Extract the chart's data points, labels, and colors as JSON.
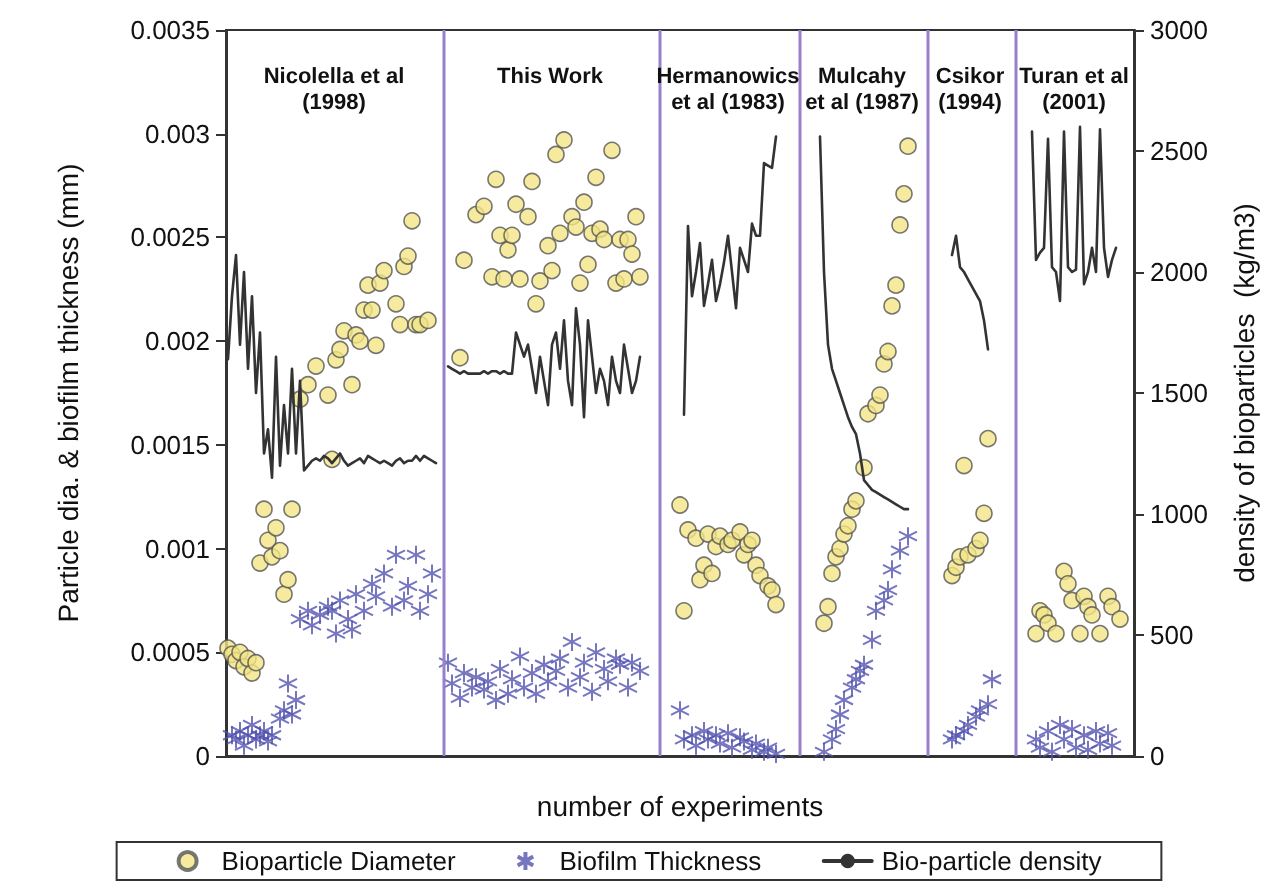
{
  "chart_data": {
    "type": "scatter",
    "xlabel": "number of experiments",
    "ylabel": "Particle dia. & biofilm thickness (mm)",
    "y2label": "density of bioparticles  (kg/m3)",
    "legend": "bottom",
    "grid": false,
    "tick_labels": "y",
    "categories": [
      null,
      null,
      null,
      null,
      null,
      null,
      null,
      null,
      null,
      null,
      null,
      null,
      null,
      null,
      null,
      null,
      null,
      null,
      null,
      null,
      null,
      null,
      null,
      null,
      null,
      null,
      null,
      null,
      null,
      null,
      null,
      null,
      null,
      null,
      null,
      null,
      null,
      null,
      null,
      null,
      null,
      null,
      null,
      null,
      null,
      null,
      null,
      null,
      null,
      null,
      null,
      null,
      null,
      null,
      null,
      null,
      null,
      null,
      null,
      null,
      null,
      null,
      null,
      null,
      null,
      null,
      null,
      null,
      null,
      null,
      null,
      null,
      null,
      null,
      null,
      null,
      null,
      null,
      null,
      null,
      null,
      null,
      null,
      null,
      null,
      null,
      null,
      null,
      null,
      null,
      null,
      null,
      null,
      null,
      null,
      null,
      null,
      null,
      null,
      null,
      null,
      null,
      null,
      null,
      null,
      null,
      null,
      null,
      null,
      null,
      null,
      null,
      null,
      null,
      null,
      null,
      null,
      null,
      null,
      null,
      null,
      null,
      null,
      null,
      null,
      null,
      null,
      null,
      null,
      null,
      null,
      null,
      null,
      null,
      null,
      null,
      null,
      null,
      null,
      null,
      null,
      null,
      null,
      null,
      null,
      null,
      null,
      null,
      null,
      null,
      null,
      null,
      null,
      null,
      null,
      null,
      null,
      null,
      null,
      null,
      null,
      null,
      null,
      null,
      null,
      null,
      null,
      null,
      null,
      null,
      null,
      null,
      null,
      null,
      null,
      null,
      null,
      null,
      null,
      null,
      null,
      null,
      null,
      null,
      null,
      null,
      null,
      null,
      null,
      null,
      null,
      null,
      null,
      null,
      null,
      null,
      null,
      null,
      null,
      null,
      null,
      null,
      null,
      null,
      null,
      null,
      null,
      null,
      null,
      null,
      null,
      null,
      null,
      null,
      null,
      null,
      null,
      null,
      null,
      null,
      null,
      null,
      null,
      null,
      null,
      null,
      null
    ],
    "ylim": [
      0,
      0.0035
    ],
    "yticks": [
      0,
      0.0005,
      0.001,
      0.0015,
      0.002,
      0.0025,
      0.003,
      0.0035
    ],
    "y2lim": [
      0,
      3000
    ],
    "y2ticks": [
      0,
      500,
      1000,
      1500,
      2000,
      2500,
      3000
    ],
    "annotations": [
      "Nicolella et al\n(1998)",
      "This Work",
      "Hermanowics\net al (1983)",
      "Mulcahy\net al (1987)",
      "Csikor\n(1994)",
      "Turan et al\n(2001)"
    ],
    "series": [
      {
        "name": "Bioparticle Diameter",
        "marker": "circle",
        "color": "#f3e585",
        "values": [
          0.00052,
          0.00049,
          0.00046,
          0.0005,
          0.00043,
          0.00047,
          0.0004,
          0.00045,
          0.00093,
          0.00119,
          0.00104,
          0.00096,
          0.0011,
          0.00099,
          0.00078,
          0.00085,
          0.00119,
          null,
          0.00172,
          null,
          0.00179,
          null,
          0.00188,
          null,
          null,
          0.00174,
          0.00143,
          0.00191,
          0.00196,
          0.00205,
          null,
          0.00179,
          0.00203,
          0.002,
          0.00215,
          0.00227,
          0.00215,
          0.00198,
          0.00228,
          0.00234,
          null,
          null,
          0.00218,
          0.00208,
          0.00236,
          0.00241,
          0.00258,
          0.00208,
          0.00208,
          null,
          0.0021,
          null,
          null,
          null,
          null,
          null,
          null,
          null,
          0.00192,
          0.00239,
          null,
          null,
          0.00261,
          null,
          0.00265,
          null,
          0.00231,
          0.00278,
          0.00251,
          0.0023,
          0.00244,
          0.00251,
          0.00266,
          0.0023,
          null,
          0.0026,
          0.00277,
          0.00218,
          0.00229,
          null,
          0.00246,
          0.00234,
          0.0029,
          0.00252,
          0.00297,
          null,
          0.0026,
          0.00255,
          0.00228,
          0.00267,
          0.00237,
          0.00252,
          0.00279,
          0.00254,
          0.00249,
          null,
          0.00292,
          0.00228,
          0.00249,
          0.0023,
          0.00249,
          0.00242,
          0.0026,
          0.00231,
          null,
          null,
          null,
          null,
          null,
          null,
          null,
          null,
          null,
          0.00121,
          0.0007,
          0.00109,
          null,
          0.00105,
          0.00085,
          0.00092,
          0.00107,
          0.00088,
          0.00101,
          0.00106,
          null,
          0.00102,
          0.00104,
          null,
          0.00108,
          0.00097,
          0.00102,
          0.00104,
          0.00092,
          0.00087,
          null,
          0.00082,
          0.0008,
          0.00073,
          null,
          null,
          null,
          null,
          null,
          null,
          null,
          null,
          null,
          null,
          null,
          0.00064,
          0.00072,
          0.00088,
          0.00096,
          0.001,
          0.00107,
          0.00111,
          0.00119,
          0.00123,
          null,
          0.00139,
          0.00165,
          null,
          0.00169,
          0.00174,
          0.00189,
          0.00195,
          0.00217,
          0.00227,
          0.00256,
          0.00271,
          0.00294,
          null,
          null,
          null,
          null,
          null,
          null,
          null,
          null,
          null,
          null,
          0.00087,
          0.00091,
          0.00096,
          0.0014,
          0.00097,
          null,
          0.001,
          0.00104,
          0.00117,
          0.00153,
          null,
          null,
          null,
          null,
          null,
          null,
          null,
          null,
          null,
          null,
          null,
          0.00059,
          0.0007,
          0.00068,
          0.00064,
          null,
          0.00059,
          null,
          0.00089,
          0.00083,
          0.00075,
          null,
          0.00059,
          0.00077,
          0.00072,
          0.00068,
          null,
          0.00059,
          null,
          0.00077,
          0.00072,
          null,
          0.00066,
          null,
          null,
          null
        ]
      },
      {
        "name": "Biofilm Thickness",
        "marker": "cross",
        "color": "#5252b0",
        "values": [
          null,
          0.0001,
          8e-05,
          0.00012,
          5e-05,
          0.0001,
          0.00015,
          8e-05,
          0.0001,
          0.00012,
          7e-05,
          0.0001,
          null,
          0.00018,
          0.00022,
          0.00035,
          0.0002,
          0.00027,
          0.00066,
          null,
          0.0007,
          0.00063,
          null,
          0.00068,
          null,
          0.00072,
          0.0007,
          0.00059,
          0.00075,
          null,
          0.00066,
          0.00061,
          0.00078,
          null,
          0.0007,
          null,
          0.00083,
          0.00077,
          null,
          0.00088,
          null,
          0.00072,
          0.00097,
          null,
          0.00075,
          0.00082,
          null,
          0.00097,
          0.0007,
          null,
          0.00078,
          0.00088,
          null,
          null,
          null,
          0.00045,
          0.00035,
          null,
          0.00028,
          0.0004,
          null,
          0.00033,
          0.00038,
          null,
          0.00032,
          0.00036,
          null,
          0.00027,
          0.00042,
          null,
          0.0003,
          0.00037,
          null,
          0.00048,
          0.00033,
          null,
          0.0004,
          0.0003,
          null,
          0.00044,
          0.00036,
          null,
          0.00041,
          0.00047,
          null,
          0.00033,
          0.00055,
          null,
          0.00038,
          0.00045,
          null,
          0.00031,
          0.0005,
          null,
          0.00042,
          0.00036,
          null,
          0.00047,
          0.00044,
          null,
          0.00033,
          0.00045,
          null,
          0.00041,
          null,
          null,
          null,
          null,
          null,
          null,
          null,
          null,
          null,
          0.00022,
          8e-05,
          null,
          0.0001,
          5e-05,
          null,
          0.00012,
          8e-05,
          null,
          0.0001,
          6e-05,
          null,
          0.00011,
          4e-05,
          null,
          9e-05,
          7e-05,
          null,
          3e-05,
          6e-05,
          null,
          2e-05,
          4e-05,
          null,
          1e-05,
          null,
          null,
          null,
          null,
          null,
          null,
          null,
          null,
          null,
          null,
          null,
          2e-05,
          null,
          8e-05,
          0.00013,
          0.0002,
          0.00027,
          null,
          0.00033,
          0.00037,
          0.00041,
          0.00044,
          null,
          0.00056,
          0.0007,
          null,
          0.00075,
          0.0008,
          0.0009,
          null,
          0.00099,
          null,
          0.00106,
          null,
          null,
          null,
          null,
          null,
          null,
          null,
          null,
          null,
          null,
          8e-05,
          0.0001,
          null,
          0.00012,
          0.00015,
          null,
          0.00019,
          0.00022,
          null,
          0.00025,
          0.00037,
          null,
          null,
          null,
          null,
          null,
          null,
          null,
          null,
          null,
          null,
          8e-05,
          4e-05,
          null,
          0.00012,
          2e-05,
          null,
          0.00015,
          8e-05,
          null,
          0.00013,
          4e-05,
          null,
          0.0001,
          3e-05,
          null,
          0.00012,
          6e-05,
          null,
          0.00011,
          5e-05,
          null,
          null,
          null,
          null,
          null
        ]
      },
      {
        "name": "Bio-particle density",
        "type": "line",
        "axis": "y2",
        "marker": "none",
        "line_style": "solid",
        "color": "#333333",
        "values": [
          1640,
          1900,
          2070,
          1700,
          2000,
          1600,
          1900,
          1500,
          1750,
          1250,
          1350,
          1150,
          1650,
          1200,
          1450,
          1250,
          1600,
          1250,
          1550,
          1180,
          1200,
          1220,
          1230,
          1220,
          1240,
          1230,
          1210,
          1230,
          1250,
          1220,
          1200,
          1210,
          1220,
          1230,
          1210,
          1240,
          1230,
          1220,
          1210,
          1220,
          1210,
          1200,
          1220,
          1230,
          1210,
          1220,
          1220,
          1240,
          1220,
          1240,
          1230,
          1220,
          1210,
          null,
          null,
          1610,
          1600,
          1590,
          1580,
          1590,
          1580,
          1580,
          1580,
          1580,
          1590,
          1580,
          1590,
          1590,
          1580,
          1590,
          1580,
          1580,
          1750,
          1700,
          1650,
          1700,
          1600,
          1500,
          1650,
          1550,
          1450,
          1700,
          1750,
          1600,
          1800,
          1550,
          1450,
          1850,
          1700,
          1400,
          1800,
          1650,
          1500,
          1600,
          1550,
          1450,
          1650,
          1550,
          1500,
          1700,
          1600,
          1500,
          1550,
          1650,
          null,
          null,
          null,
          null,
          null,
          null,
          null,
          null,
          null,
          null,
          1410,
          2190,
          1900,
          2000,
          2120,
          1860,
          1950,
          2050,
          1880,
          1950,
          2040,
          2150,
          2000,
          1850,
          2100,
          2050,
          2000,
          2200,
          2150,
          2150,
          2450,
          2440,
          2430,
          2560,
          null,
          null,
          null,
          null,
          null,
          null,
          null,
          null,
          null,
          null,
          2560,
          2000,
          1700,
          1600,
          1550,
          1500,
          1450,
          1400,
          1360,
          1330,
          1250,
          1140,
          1120,
          1100,
          1090,
          1080,
          1070,
          1060,
          1050,
          1040,
          1030,
          1020,
          1020,
          null,
          null,
          null,
          null,
          null,
          null,
          null,
          null,
          null,
          null,
          2070,
          2150,
          2020,
          2000,
          1970,
          1940,
          1910,
          1880,
          1800,
          1680,
          null,
          null,
          null,
          null,
          null,
          null,
          null,
          null,
          null,
          null,
          2580,
          2050,
          2080,
          2100,
          2550,
          2020,
          2000,
          1880,
          2580,
          2020,
          2000,
          2010,
          2600,
          1950,
          2000,
          2100,
          2000,
          2590,
          2100,
          1980,
          2050,
          2100,
          null,
          null,
          null,
          null
        ]
      }
    ]
  }
}
